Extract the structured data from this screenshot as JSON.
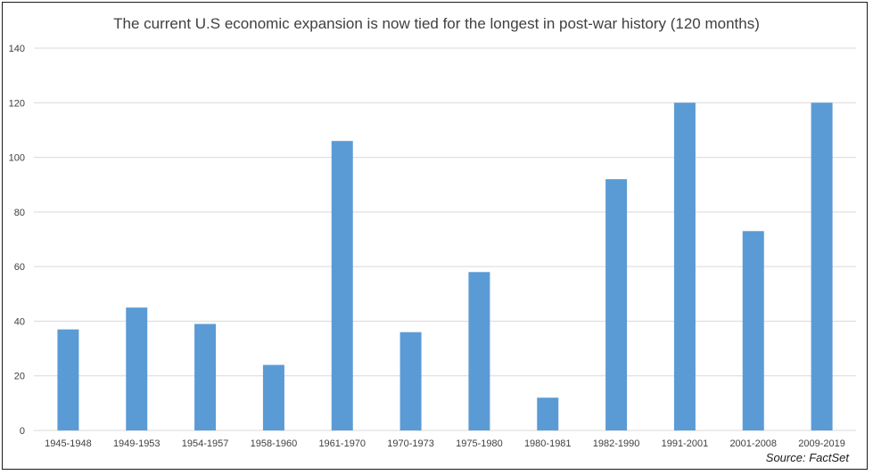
{
  "chart_data": {
    "type": "bar",
    "title": "The current U.S economic expansion is now tied for the longest in post-war history (120 months)",
    "xlabel": "",
    "ylabel": "",
    "categories": [
      "1945-1948",
      "1949-1953",
      "1954-1957",
      "1958-1960",
      "1961-1970",
      "1970-1973",
      "1975-1980",
      "1980-1981",
      "1982-1990",
      "1991-2001",
      "2001-2008",
      "2009-2019"
    ],
    "values": [
      37,
      45,
      39,
      24,
      106,
      36,
      58,
      12,
      92,
      120,
      73,
      120
    ],
    "ylim": [
      0,
      140
    ],
    "yticks": [
      0,
      20,
      40,
      60,
      80,
      100,
      120,
      140
    ],
    "grid": true,
    "legend": "none",
    "bar_color": "#5b9bd5",
    "grid_color": "#d9d9d9",
    "source": "Source: FactSet"
  }
}
